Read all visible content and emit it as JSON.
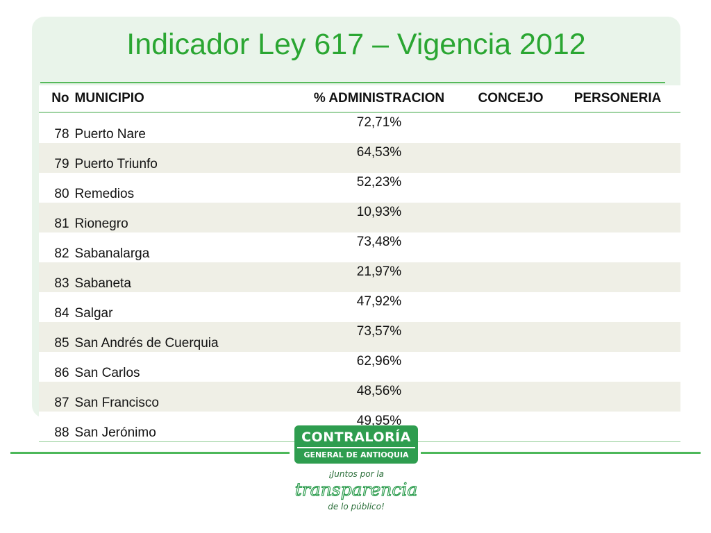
{
  "title": "Indicador Ley 617 – Vigencia 2012",
  "table": {
    "columns": [
      "No",
      "MUNICIPIO",
      "% ADMINISTRACION",
      "CONCEJO",
      "PERSONERIA"
    ],
    "rows": [
      {
        "no": "78",
        "municipio": "Puerto Nare",
        "administracion": "72,71%",
        "concejo": "",
        "personeria": ""
      },
      {
        "no": "79",
        "municipio": "Puerto Triunfo",
        "administracion": "64,53%",
        "concejo": "",
        "personeria": ""
      },
      {
        "no": "80",
        "municipio": "Remedios",
        "administracion": "52,23%",
        "concejo": "",
        "personeria": ""
      },
      {
        "no": "81",
        "municipio": "Rionegro",
        "administracion": "10,93%",
        "concejo": "",
        "personeria": ""
      },
      {
        "no": "82",
        "municipio": "Sabanalarga",
        "administracion": "73,48%",
        "concejo": "",
        "personeria": ""
      },
      {
        "no": "83",
        "municipio": "Sabaneta",
        "administracion": "21,97%",
        "concejo": "",
        "personeria": ""
      },
      {
        "no": "84",
        "municipio": "Salgar",
        "administracion": "47,92%",
        "concejo": "",
        "personeria": ""
      },
      {
        "no": "85",
        "municipio": "San Andrés de Cuerquia",
        "administracion": "73,57%",
        "concejo": "",
        "personeria": ""
      },
      {
        "no": "86",
        "municipio": "San Carlos",
        "administracion": "62,96%",
        "concejo": "",
        "personeria": ""
      },
      {
        "no": "87",
        "municipio": "San Francisco",
        "administracion": "48,56%",
        "concejo": "",
        "personeria": ""
      },
      {
        "no": "88",
        "municipio": "San Jerónimo",
        "administracion": "49,95%",
        "concejo": "",
        "personeria": ""
      }
    ]
  },
  "logo": {
    "name": "CONTRALORÍA",
    "subtitle": "GENERAL DE ANTIOQUIA",
    "slogan_line1": "¡Juntos por la",
    "slogan_line2": "transparencia",
    "slogan_line3": "de lo público!"
  },
  "colors": {
    "title": "#2aa632",
    "panel": "#e9f4ea",
    "row_alt": "#efefe6",
    "brand_green": "#2e9d4f"
  }
}
